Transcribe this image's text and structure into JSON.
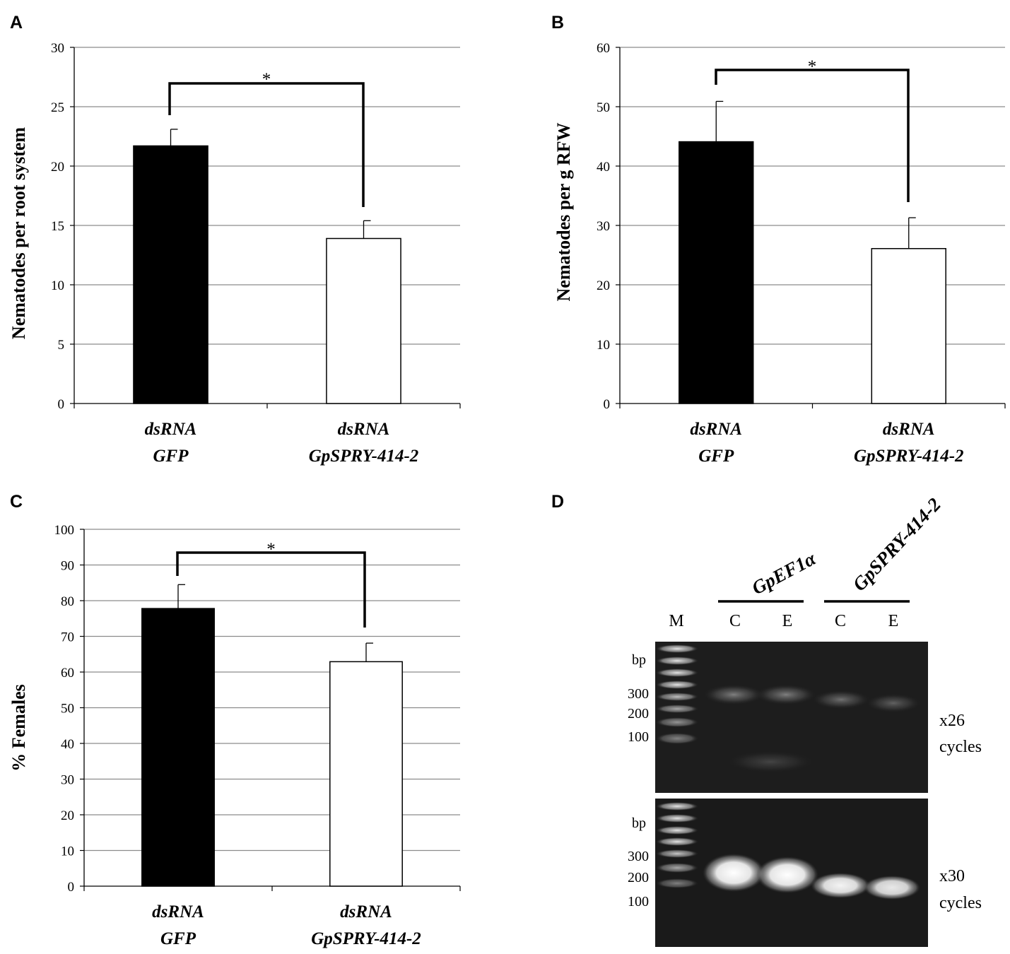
{
  "chart_data": [
    {
      "panel": "A",
      "type": "bar",
      "categories": [
        [
          "dsRNA",
          "GFP"
        ],
        [
          "dsRNA",
          "GpSPRY-414-2"
        ]
      ],
      "values": [
        21.7,
        13.9
      ],
      "errors": [
        1.4,
        1.5
      ],
      "bar_colors": [
        "#000000",
        "#ffffff"
      ],
      "ylabel": "Nematodes per root system",
      "ylim": [
        0,
        30
      ],
      "yticks": [
        0,
        5,
        10,
        15,
        20,
        25,
        30
      ],
      "significance": "*",
      "grid": true
    },
    {
      "panel": "B",
      "type": "bar",
      "categories": [
        [
          "dsRNA",
          "GFP"
        ],
        [
          "dsRNA",
          "GpSPRY-414-2"
        ]
      ],
      "values": [
        44.1,
        26.1
      ],
      "errors": [
        6.8,
        5.2
      ],
      "bar_colors": [
        "#000000",
        "#ffffff"
      ],
      "ylabel": "Nematodes per g RFW",
      "ylim": [
        0,
        60
      ],
      "yticks": [
        0,
        10,
        20,
        30,
        40,
        50,
        60
      ],
      "significance": "*",
      "grid": true
    },
    {
      "panel": "C",
      "type": "bar",
      "categories": [
        [
          "dsRNA",
          "GFP"
        ],
        [
          "dsRNA",
          "GpSPRY-414-2"
        ]
      ],
      "values": [
        77.8,
        62.9
      ],
      "errors": [
        6.7,
        5.2
      ],
      "bar_colors": [
        "#000000",
        "#ffffff"
      ],
      "ylabel": "% Females",
      "ylim": [
        0,
        100
      ],
      "yticks": [
        0,
        10,
        20,
        30,
        40,
        50,
        60,
        70,
        80,
        90,
        100
      ],
      "significance": "*",
      "grid": true
    }
  ],
  "gel": {
    "panel": "D",
    "genes": [
      "GpEF1α",
      "GpSPRY-414-2"
    ],
    "lanes": [
      "M",
      "C",
      "E",
      "C",
      "E"
    ],
    "bp_label": "bp",
    "markers": [
      "300",
      "200",
      "100"
    ],
    "gels": [
      {
        "cycles_line1": "x26",
        "cycles_line2": "cycles"
      },
      {
        "cycles_line1": "x30",
        "cycles_line2": "cycles"
      }
    ]
  }
}
